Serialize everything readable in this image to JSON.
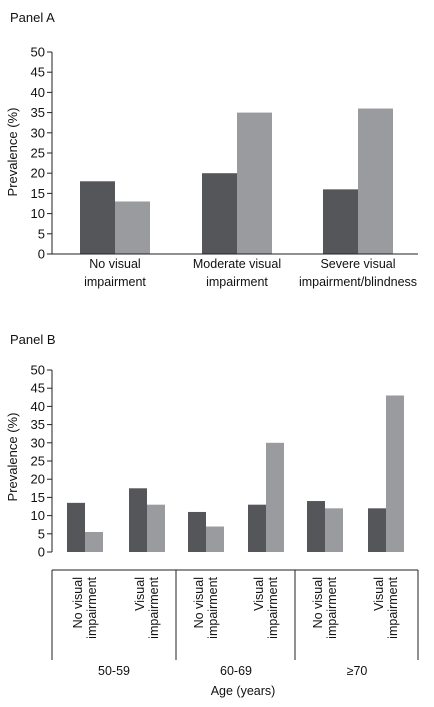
{
  "colors": {
    "series_dark": "#55565a",
    "series_light": "#9a9b9f",
    "axis": "#222222"
  },
  "chart_data": [
    {
      "type": "bar",
      "panel": "Panel A",
      "ylabel": "Prevalence (%)",
      "ylim": [
        0,
        50
      ],
      "yticks": [
        0,
        5,
        10,
        15,
        20,
        25,
        30,
        35,
        40,
        45,
        50
      ],
      "categories": [
        [
          "No visual",
          "impairment"
        ],
        [
          "Moderate visual",
          "impairment"
        ],
        [
          "Severe visual",
          "impairment/blindness"
        ]
      ],
      "series": [
        {
          "values": [
            18,
            20,
            16
          ]
        },
        {
          "values": [
            13,
            35,
            36
          ]
        }
      ],
      "grid": false,
      "legend": "none"
    },
    {
      "type": "bar",
      "panel": "Panel B",
      "ylabel": "Prevalence (%)",
      "xlabel": "Age (years)",
      "ylim": [
        0,
        50
      ],
      "yticks": [
        0,
        5,
        10,
        15,
        20,
        25,
        30,
        35,
        40,
        45,
        50
      ],
      "groups": [
        "50-59",
        "60-69",
        "≥70"
      ],
      "categories": [
        [
          "No visual",
          "impairment"
        ],
        [
          "Visual",
          "impairment"
        ],
        [
          "No visual",
          "impairment"
        ],
        [
          "Visual",
          "impairment"
        ],
        [
          "No visual",
          "impairment"
        ],
        [
          "Visual",
          "impairment"
        ]
      ],
      "series": [
        {
          "values": [
            13.5,
            17.5,
            11,
            13,
            14,
            12
          ]
        },
        {
          "values": [
            5.5,
            13,
            7,
            30,
            12,
            43
          ]
        }
      ],
      "grid": false,
      "legend": "none"
    }
  ]
}
